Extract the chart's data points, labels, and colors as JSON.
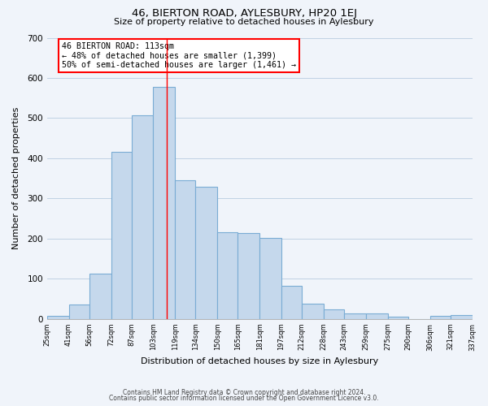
{
  "title": "46, BIERTON ROAD, AYLESBURY, HP20 1EJ",
  "subtitle": "Size of property relative to detached houses in Aylesbury",
  "xlabel": "Distribution of detached houses by size in Aylesbury",
  "ylabel": "Number of detached properties",
  "bar_values": [
    8,
    35,
    112,
    415,
    507,
    578,
    345,
    330,
    215,
    213,
    202,
    82,
    38,
    23,
    13,
    14,
    5,
    0,
    8,
    10
  ],
  "bar_left_edges": [
    25,
    41,
    56,
    72,
    87,
    103,
    119,
    134,
    150,
    165,
    181,
    197,
    212,
    228,
    243,
    259,
    275,
    290,
    306,
    321
  ],
  "bar_widths": [
    16,
    15,
    16,
    15,
    16,
    16,
    15,
    16,
    15,
    16,
    16,
    15,
    16,
    15,
    16,
    16,
    15,
    16,
    15,
    16
  ],
  "bar_color": "#c5d8ec",
  "bar_edge_color": "#7aacd4",
  "tick_labels": [
    "25sqm",
    "41sqm",
    "56sqm",
    "72sqm",
    "87sqm",
    "103sqm",
    "119sqm",
    "134sqm",
    "150sqm",
    "165sqm",
    "181sqm",
    "197sqm",
    "212sqm",
    "228sqm",
    "243sqm",
    "259sqm",
    "275sqm",
    "290sqm",
    "306sqm",
    "321sqm",
    "337sqm"
  ],
  "ylim": [
    0,
    700
  ],
  "yticks": [
    0,
    100,
    200,
    300,
    400,
    500,
    600,
    700
  ],
  "xlim_left": 25,
  "xlim_right": 337,
  "red_line_x": 113,
  "annotation_title": "46 BIERTON ROAD: 113sqm",
  "annotation_line1": "← 48% of detached houses are smaller (1,399)",
  "annotation_line2": "50% of semi-detached houses are larger (1,461) →",
  "footer_line1": "Contains HM Land Registry data © Crown copyright and database right 2024.",
  "footer_line2": "Contains public sector information licensed under the Open Government Licence v3.0.",
  "background_color": "#f0f4fa"
}
